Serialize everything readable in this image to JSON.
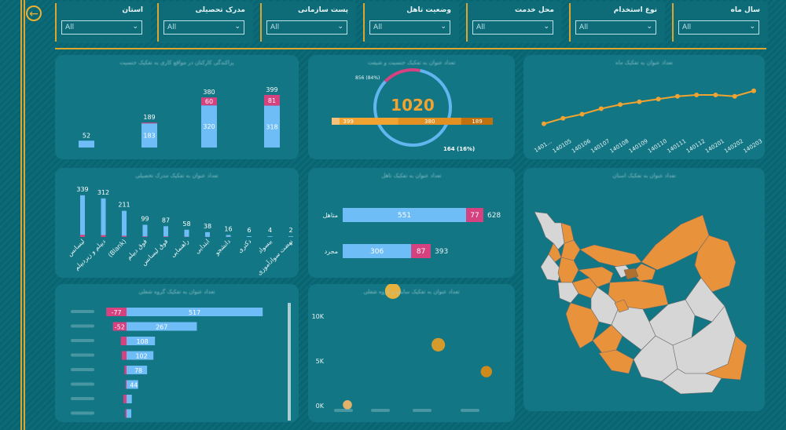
{
  "filters": [
    {
      "label": "سال ماه",
      "value": "All"
    },
    {
      "label": "نوع استخدام",
      "value": "All"
    },
    {
      "label": "محل خدمت",
      "value": "All"
    },
    {
      "label": "وضعیت تاهل",
      "value": "All"
    },
    {
      "label": "پست سازمانی",
      "value": "All"
    },
    {
      "label": "مدرک تحصیلی",
      "value": "All"
    },
    {
      "label": "استان",
      "value": "All"
    }
  ],
  "colors": {
    "blue": "#6fbdf6",
    "pink": "#d6417f",
    "orange": "#f0a330",
    "brown": "#c0700f",
    "gray": "#d6d6d6",
    "map_orange": "#e8923c"
  },
  "panel_titles": {
    "stacked": "پراکندگی کارکنان در مواقع کاری به تفکیک جنسیت",
    "donut": "تعداد عنوان به تفکیک جنسیت و شیفت",
    "line": "تعداد عنوان به تفکیک ماه",
    "education": "تعداد عنوان به تفکیک مدرک تحصیلی",
    "marital": "تعداد عنوان به تفکیک تاهل",
    "map": "تعداد عنوان به تفکیک استان",
    "hbar": "تعداد عنوان به تفکیک گروه شغلی",
    "scatter": "تعداد عنوان به تفکیک سابقه و گروه شغلی"
  },
  "icons": {
    "back": "back-arrow-icon"
  },
  "chart_data": [
    {
      "id": "stacked",
      "type": "bar",
      "categories": [
        "",
        "",
        "",
        ""
      ],
      "series": [
        {
          "values": [
            52,
            183,
            320,
            318
          ]
        },
        {
          "values": [
            0,
            6,
            60,
            81
          ]
        }
      ],
      "totals": [
        52,
        189,
        380,
        399
      ],
      "segment_labels": [
        [
          "",
          ""
        ],
        [
          "183",
          ""
        ],
        [
          "320",
          "60"
        ],
        [
          "318",
          "81"
        ]
      ]
    },
    {
      "id": "donut",
      "type": "pie",
      "center_value": "1020",
      "top_label": "856 (84%)",
      "bottom_label": "164 (16%)",
      "slices": [
        856,
        164
      ],
      "bar_segments": [
        399,
        380,
        189
      ],
      "bar_labels": [
        "399",
        "380",
        "189"
      ]
    },
    {
      "id": "line",
      "type": "line",
      "x": [
        "1401...",
        "140105",
        "140106",
        "140107",
        "140108",
        "140109",
        "140110",
        "140111",
        "140112",
        "140201",
        "140202",
        "140203"
      ],
      "y": [
        7,
        11,
        14,
        18,
        21,
        23,
        25,
        27,
        28,
        28,
        27,
        31
      ],
      "ylim": [
        0,
        40
      ]
    },
    {
      "id": "education",
      "type": "bar",
      "categories": [
        "لیسانس",
        "دیپلم و زیردیپلم",
        "(Blank)",
        "فوق دیپلم",
        "فوق لیسانس",
        "راهنمایی",
        "ابتدایی",
        "دانشجو",
        "دکتری",
        "بیسواد",
        "نهضت سوادآموزی"
      ],
      "series": [
        {
          "values": [
            322,
            298,
            202,
            94,
            83,
            56,
            37,
            15,
            6,
            4,
            2
          ]
        },
        {
          "values": [
            17,
            14,
            9,
            5,
            4,
            2,
            1,
            1,
            0,
            0,
            0
          ]
        }
      ],
      "totals": [
        339,
        312,
        211,
        99,
        87,
        58,
        38,
        16,
        6,
        4,
        2
      ]
    },
    {
      "id": "marital",
      "type": "bar",
      "orientation": "horizontal",
      "categories": [
        "متاهل",
        "مجرد"
      ],
      "series": [
        {
          "values": [
            551,
            306
          ]
        },
        {
          "values": [
            77,
            87
          ]
        }
      ],
      "totals": [
        628,
        393
      ]
    },
    {
      "id": "hbar",
      "type": "bar",
      "orientation": "horizontal",
      "rows": [
        {
          "pos": 517,
          "neg": -77,
          "pos_label": "517",
          "neg_label": "-77"
        },
        {
          "pos": 267,
          "neg": -52,
          "pos_label": "267",
          "neg_label": "-52"
        },
        {
          "pos": 108,
          "neg": -22,
          "pos_label": "108",
          "neg_label": ""
        },
        {
          "pos": 102,
          "neg": -18,
          "pos_label": "102",
          "neg_label": ""
        },
        {
          "pos": 78,
          "neg": -8,
          "pos_label": "78",
          "neg_label": ""
        },
        {
          "pos": 44,
          "neg": -4,
          "pos_label": "44",
          "neg_label": ""
        },
        {
          "pos": 20,
          "neg": -12,
          "pos_label": "",
          "neg_label": ""
        },
        {
          "pos": 18,
          "neg": -5,
          "pos_label": "",
          "neg_label": ""
        },
        {
          "pos": 16,
          "neg": -3,
          "pos_label": "",
          "neg_label": ""
        }
      ]
    },
    {
      "id": "scatter",
      "type": "scatter",
      "y_ticks": [
        "0K",
        "5K",
        "10K"
      ],
      "ylim": [
        0,
        12000
      ],
      "points": [
        {
          "x": 0,
          "y": 100,
          "r": 0.4
        },
        {
          "x": 1.7,
          "y": 12800,
          "r": 1
        },
        {
          "x": 3.4,
          "y": 6800,
          "r": 0.8
        },
        {
          "x": 5.2,
          "y": 3800,
          "r": 0.6
        }
      ]
    },
    {
      "id": "map",
      "type": "map",
      "legend": "orange = provinces with data, gray = none"
    }
  ]
}
